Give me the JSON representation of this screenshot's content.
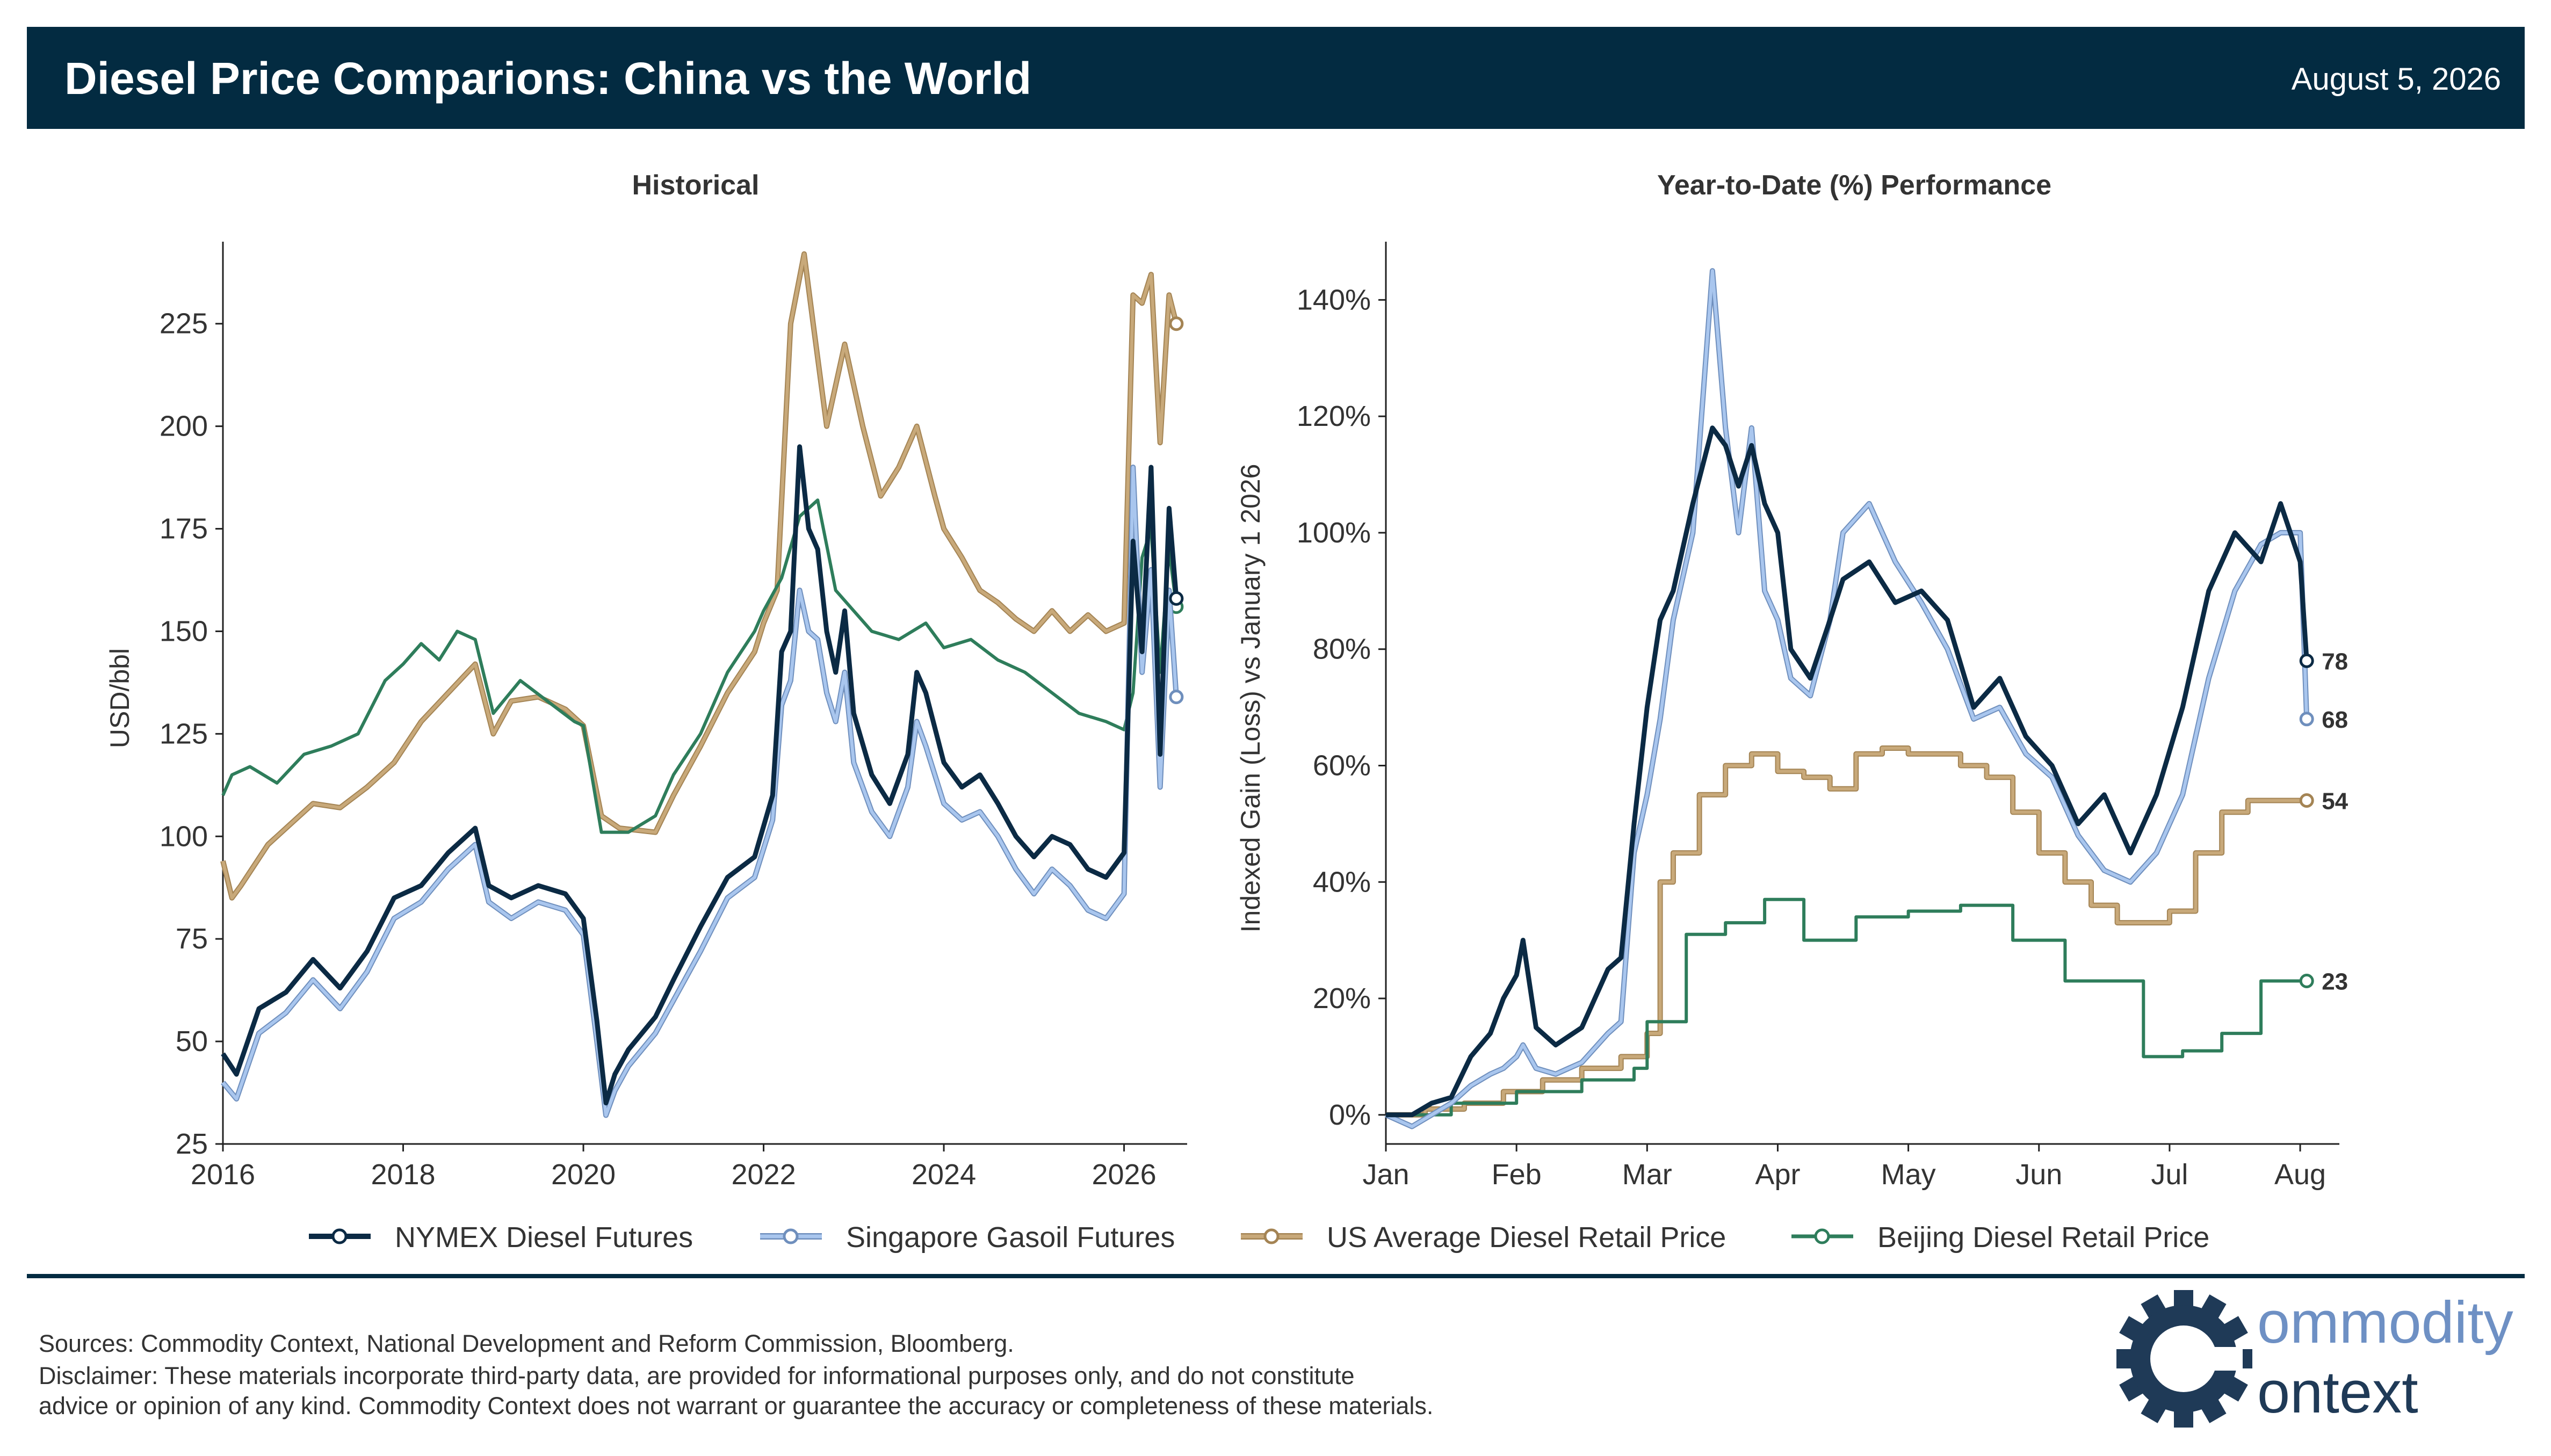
{
  "header": {
    "title": "Diesel Price Comparions: China vs the World",
    "date": "August 5, 2026"
  },
  "colors": {
    "header_bg": "#032b41",
    "nymex": "#0b2a44",
    "singapore": "#a9c6ee",
    "us_retail": "#c8a97a",
    "beijing": "#2e7d5b"
  },
  "legend": [
    {
      "label": "NYMEX Diesel Futures",
      "color": "#0b2a44",
      "edge": "#0b2a44"
    },
    {
      "label": "Singapore Gasoil Futures",
      "color": "#a9c6ee",
      "edge": "#6f8fbd"
    },
    {
      "label": "US Average Diesel Retail Price",
      "color": "#c8a97a",
      "edge": "#a48454"
    },
    {
      "label": "Beijing Diesel Retail Price",
      "color": "#2e7d5b",
      "edge": "#2e7d5b"
    }
  ],
  "chart_data": [
    {
      "type": "line",
      "title": "Historical",
      "xlabel": "",
      "ylabel": "USD/bbl",
      "x_ticks": [
        "2016",
        "2018",
        "2020",
        "2022",
        "2024",
        "2026"
      ],
      "y_ticks": [
        25,
        50,
        75,
        100,
        125,
        150,
        175,
        200,
        225
      ],
      "xlim": [
        2016.0,
        2026.7
      ],
      "ylim": [
        25,
        245
      ],
      "series": [
        {
          "name": "NYMEX Diesel Futures",
          "x": [
            2016.0,
            2016.15,
            2016.4,
            2016.7,
            2017.0,
            2017.3,
            2017.6,
            2017.9,
            2018.2,
            2018.5,
            2018.8,
            2018.95,
            2019.2,
            2019.5,
            2019.8,
            2020.0,
            2020.15,
            2020.25,
            2020.35,
            2020.5,
            2020.8,
            2021.0,
            2021.3,
            2021.6,
            2021.9,
            2022.1,
            2022.2,
            2022.3,
            2022.4,
            2022.5,
            2022.6,
            2022.7,
            2022.8,
            2022.9,
            2023.0,
            2023.2,
            2023.4,
            2023.6,
            2023.7,
            2023.8,
            2024.0,
            2024.2,
            2024.4,
            2024.6,
            2024.8,
            2025.0,
            2025.2,
            2025.4,
            2025.6,
            2025.8,
            2026.0,
            2026.1,
            2026.2,
            2026.3,
            2026.4,
            2026.5,
            2026.58
          ],
          "y": [
            47,
            42,
            58,
            62,
            70,
            63,
            72,
            85,
            88,
            96,
            102,
            88,
            85,
            88,
            86,
            80,
            55,
            35,
            42,
            48,
            56,
            65,
            78,
            90,
            95,
            110,
            145,
            150,
            195,
            175,
            170,
            150,
            140,
            155,
            130,
            115,
            108,
            120,
            140,
            135,
            118,
            112,
            115,
            108,
            100,
            95,
            100,
            98,
            92,
            90,
            96,
            172,
            145,
            190,
            120,
            180,
            158
          ]
        },
        {
          "name": "Singapore Gasoil Futures",
          "x": [
            2016.0,
            2016.15,
            2016.4,
            2016.7,
            2017.0,
            2017.3,
            2017.6,
            2017.9,
            2018.2,
            2018.5,
            2018.8,
            2018.95,
            2019.2,
            2019.5,
            2019.8,
            2020.0,
            2020.15,
            2020.25,
            2020.35,
            2020.5,
            2020.8,
            2021.0,
            2021.3,
            2021.6,
            2021.9,
            2022.1,
            2022.2,
            2022.3,
            2022.4,
            2022.5,
            2022.6,
            2022.7,
            2022.8,
            2022.9,
            2023.0,
            2023.2,
            2023.4,
            2023.6,
            2023.7,
            2023.8,
            2024.0,
            2024.2,
            2024.4,
            2024.6,
            2024.8,
            2025.0,
            2025.2,
            2025.4,
            2025.6,
            2025.8,
            2026.0,
            2026.1,
            2026.2,
            2026.3,
            2026.4,
            2026.5,
            2026.58
          ],
          "y": [
            40,
            36,
            52,
            57,
            65,
            58,
            67,
            80,
            84,
            92,
            98,
            84,
            80,
            84,
            82,
            76,
            50,
            32,
            38,
            44,
            52,
            60,
            72,
            85,
            90,
            104,
            132,
            138,
            160,
            150,
            148,
            135,
            128,
            140,
            118,
            106,
            100,
            112,
            128,
            122,
            108,
            104,
            106,
            100,
            92,
            86,
            92,
            88,
            82,
            80,
            86,
            190,
            140,
            165,
            112,
            160,
            134
          ]
        },
        {
          "name": "US Average Diesel Retail Price",
          "x": [
            2016.0,
            2016.1,
            2016.2,
            2016.5,
            2016.8,
            2017.0,
            2017.3,
            2017.6,
            2017.9,
            2018.2,
            2018.5,
            2018.8,
            2019.0,
            2019.2,
            2019.5,
            2019.8,
            2020.0,
            2020.2,
            2020.4,
            2020.8,
            2021.0,
            2021.3,
            2021.6,
            2021.9,
            2022.0,
            2022.15,
            2022.3,
            2022.45,
            2022.55,
            2022.7,
            2022.9,
            2023.1,
            2023.3,
            2023.5,
            2023.7,
            2023.9,
            2024.0,
            2024.2,
            2024.4,
            2024.6,
            2024.8,
            2025.0,
            2025.2,
            2025.4,
            2025.6,
            2025.8,
            2026.0,
            2026.1,
            2026.2,
            2026.3,
            2026.4,
            2026.5,
            2026.58
          ],
          "y": [
            94,
            85,
            88,
            98,
            104,
            108,
            107,
            112,
            118,
            128,
            135,
            142,
            125,
            133,
            134,
            131,
            127,
            105,
            102,
            101,
            110,
            122,
            135,
            145,
            152,
            160,
            225,
            242,
            225,
            200,
            220,
            200,
            183,
            190,
            200,
            183,
            175,
            168,
            160,
            157,
            153,
            150,
            155,
            150,
            154,
            150,
            152,
            232,
            230,
            237,
            196,
            232,
            225
          ]
        },
        {
          "name": "Beijing Diesel Retail Price",
          "x": [
            2016.0,
            2016.1,
            2016.3,
            2016.6,
            2016.9,
            2017.2,
            2017.5,
            2017.8,
            2018.0,
            2018.2,
            2018.4,
            2018.6,
            2018.8,
            2019.0,
            2019.3,
            2019.6,
            2019.9,
            2020.0,
            2020.2,
            2020.5,
            2020.8,
            2021.0,
            2021.3,
            2021.6,
            2021.9,
            2022.0,
            2022.2,
            2022.4,
            2022.6,
            2022.8,
            2023.0,
            2023.2,
            2023.5,
            2023.8,
            2024.0,
            2024.3,
            2024.6,
            2024.9,
            2025.2,
            2025.5,
            2025.8,
            2026.0,
            2026.1,
            2026.2,
            2026.3,
            2026.4,
            2026.5,
            2026.58
          ],
          "y": [
            110,
            115,
            117,
            113,
            120,
            122,
            125,
            138,
            142,
            147,
            143,
            150,
            148,
            130,
            138,
            133,
            128,
            127,
            101,
            101,
            105,
            115,
            125,
            140,
            150,
            155,
            163,
            178,
            182,
            160,
            155,
            150,
            148,
            152,
            146,
            148,
            143,
            140,
            135,
            130,
            128,
            126,
            135,
            168,
            175,
            140,
            170,
            156
          ]
        }
      ]
    },
    {
      "type": "line",
      "title": "Year-to-Date (%) Performance",
      "xlabel": "",
      "ylabel": "Indexed Gain (Loss) vs January 1 2026",
      "x_ticks": [
        "Jan",
        "Feb",
        "Mar",
        "Apr",
        "May",
        "Jun",
        "Jul",
        "Aug"
      ],
      "y_ticks": [
        "0%",
        "20%",
        "40%",
        "60%",
        "80%",
        "100%",
        "120%",
        "140%"
      ],
      "xlim": [
        0,
        7.3
      ],
      "ylim": [
        -5,
        150
      ],
      "series": [
        {
          "name": "NYMEX Diesel Futures",
          "end_label": "78",
          "x": [
            0,
            0.2,
            0.35,
            0.5,
            0.65,
            0.8,
            0.9,
            1.0,
            1.05,
            1.15,
            1.3,
            1.5,
            1.7,
            1.8,
            1.9,
            2.0,
            2.1,
            2.2,
            2.35,
            2.5,
            2.6,
            2.7,
            2.8,
            2.9,
            3.0,
            3.1,
            3.25,
            3.4,
            3.5,
            3.7,
            3.9,
            4.1,
            4.3,
            4.5,
            4.7,
            4.9,
            5.1,
            5.3,
            5.5,
            5.7,
            5.9,
            6.1,
            6.3,
            6.5,
            6.7,
            6.85,
            7.0,
            7.05
          ],
          "y": [
            0,
            0,
            2,
            3,
            10,
            14,
            20,
            24,
            30,
            15,
            12,
            15,
            25,
            27,
            50,
            70,
            85,
            90,
            105,
            118,
            115,
            108,
            115,
            105,
            100,
            80,
            75,
            85,
            92,
            95,
            88,
            90,
            85,
            70,
            75,
            65,
            60,
            50,
            55,
            45,
            55,
            70,
            90,
            100,
            95,
            105,
            95,
            78
          ]
        },
        {
          "name": "Singapore Gasoil Futures",
          "end_label": "68",
          "x": [
            0,
            0.2,
            0.35,
            0.5,
            0.65,
            0.8,
            0.9,
            1.0,
            1.05,
            1.15,
            1.3,
            1.5,
            1.7,
            1.8,
            1.9,
            2.0,
            2.1,
            2.2,
            2.35,
            2.5,
            2.6,
            2.7,
            2.8,
            2.9,
            3.0,
            3.1,
            3.25,
            3.4,
            3.5,
            3.7,
            3.9,
            4.1,
            4.3,
            4.5,
            4.7,
            4.9,
            5.1,
            5.3,
            5.5,
            5.7,
            5.9,
            6.1,
            6.3,
            6.5,
            6.7,
            6.85,
            7.0,
            7.05
          ],
          "y": [
            0,
            -2,
            0,
            2,
            5,
            7,
            8,
            10,
            12,
            8,
            7,
            9,
            14,
            16,
            45,
            55,
            68,
            85,
            100,
            145,
            118,
            100,
            118,
            90,
            85,
            75,
            72,
            85,
            100,
            105,
            95,
            88,
            80,
            68,
            70,
            62,
            58,
            48,
            42,
            40,
            45,
            55,
            75,
            90,
            98,
            100,
            100,
            68
          ]
        },
        {
          "name": "US Average Diesel Retail Price",
          "end_label": "54",
          "x": [
            0,
            0.3,
            0.6,
            0.9,
            1.2,
            1.5,
            1.8,
            2.0,
            2.1,
            2.2,
            2.4,
            2.6,
            2.8,
            3.0,
            3.2,
            3.4,
            3.6,
            3.8,
            4.0,
            4.2,
            4.4,
            4.6,
            4.8,
            5.0,
            5.2,
            5.4,
            5.6,
            5.8,
            6.0,
            6.2,
            6.4,
            6.6,
            6.8,
            7.0,
            7.05
          ],
          "y": [
            0,
            1,
            2,
            4,
            6,
            8,
            10,
            14,
            40,
            45,
            55,
            60,
            62,
            59,
            58,
            56,
            62,
            63,
            62,
            62,
            60,
            58,
            52,
            45,
            40,
            36,
            33,
            33,
            35,
            45,
            52,
            54,
            54,
            54,
            54
          ]
        },
        {
          "name": "Beijing Diesel Retail Price",
          "end_label": "23",
          "x": [
            0,
            0.5,
            1.0,
            1.5,
            1.9,
            2.0,
            2.3,
            2.6,
            2.9,
            3.2,
            3.6,
            4.0,
            4.4,
            4.8,
            5.2,
            5.5,
            5.8,
            6.1,
            6.4,
            6.7,
            7.0,
            7.05
          ],
          "y": [
            0,
            2,
            4,
            6,
            8,
            16,
            31,
            33,
            37,
            30,
            34,
            35,
            36,
            30,
            23,
            23,
            10,
            11,
            14,
            23,
            23,
            23
          ]
        }
      ]
    }
  ],
  "footer": {
    "sources": "Sources: Commodity Context, National Development and Reform Commission, Bloomberg.",
    "disclaimer_line1": "Disclaimer: These materials incorporate third-party data, are provided for informational purposes only, and do not constitute",
    "disclaimer_line2": "advice or opinion of any kind. Commodity Context does not warrant or guarantee the accuracy or completeness of these materials."
  },
  "logo": {
    "line1": "ommodity",
    "line2": "ontext",
    "icon": "gear-c-icon",
    "color_dark": "#1f3a57",
    "color_light": "#6e90c4"
  }
}
